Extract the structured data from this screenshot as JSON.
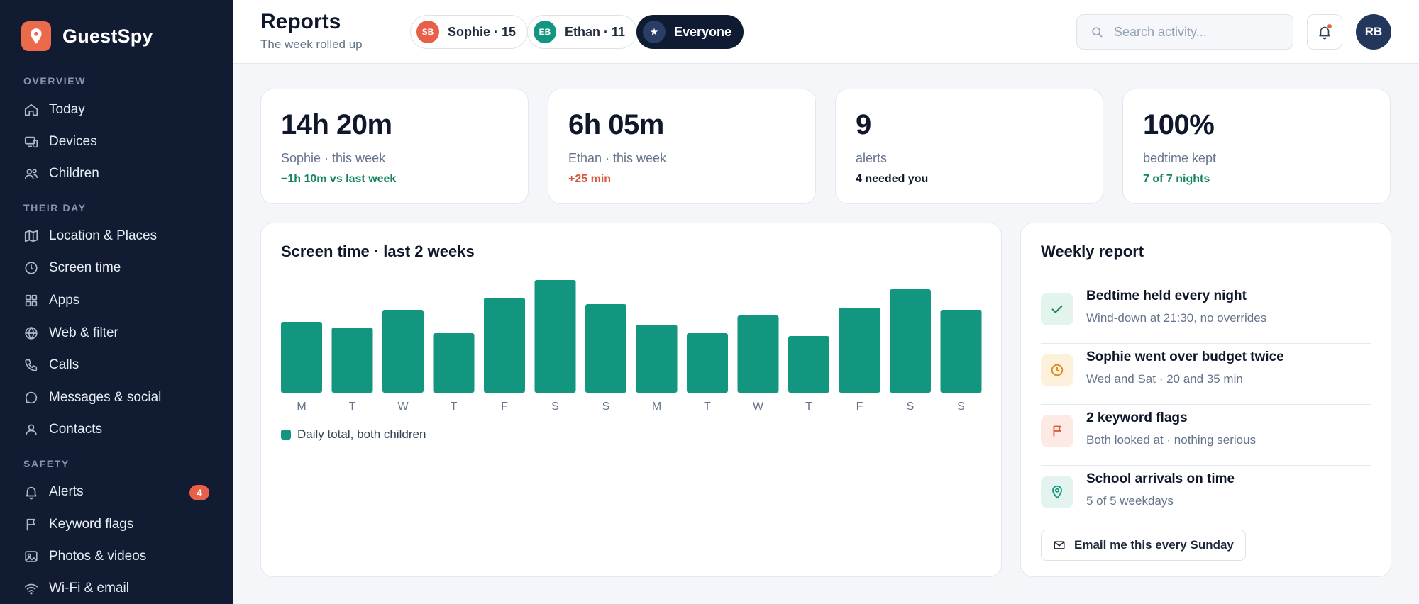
{
  "app": {
    "name": "GuestSpy"
  },
  "sidebar": {
    "sections": [
      {
        "title": "OVERVIEW",
        "items": [
          {
            "label": "Today",
            "icon": "home-icon"
          },
          {
            "label": "Devices",
            "icon": "devices-icon"
          },
          {
            "label": "Children",
            "icon": "users-icon"
          }
        ]
      },
      {
        "title": "THEIR DAY",
        "items": [
          {
            "label": "Location & Places",
            "icon": "map-icon"
          },
          {
            "label": "Screen time",
            "icon": "clock-icon"
          },
          {
            "label": "Apps",
            "icon": "grid-icon"
          },
          {
            "label": "Web & filter",
            "icon": "globe-icon"
          },
          {
            "label": "Calls",
            "icon": "phone-icon"
          },
          {
            "label": "Messages & social",
            "icon": "chat-icon"
          },
          {
            "label": "Contacts",
            "icon": "user-icon"
          }
        ]
      },
      {
        "title": "SAFETY",
        "items": [
          {
            "label": "Alerts",
            "icon": "bell-icon",
            "badge": "4"
          },
          {
            "label": "Keyword flags",
            "icon": "flag-icon"
          },
          {
            "label": "Photos & videos",
            "icon": "image-icon"
          },
          {
            "label": "Wi-Fi & email",
            "icon": "wifi-icon"
          }
        ]
      }
    ]
  },
  "header": {
    "title": "Reports",
    "subtitle": "The week rolled up",
    "filters": [
      {
        "initials": "SB",
        "label": "Sophie · 15",
        "color": "#e8604a",
        "active": false
      },
      {
        "initials": "EB",
        "label": "Ethan · 11",
        "color": "#13967f",
        "active": false
      },
      {
        "initials": "★",
        "label": "Everyone",
        "color": "#2a3d66",
        "active": true
      }
    ],
    "search": {
      "placeholder": "Search activity...",
      "value": ""
    },
    "user_initials": "RB"
  },
  "stats": [
    {
      "value": "14h 20m",
      "label": "Sophie · this week",
      "delta": "−1h 10m vs last week",
      "delta_color": "#15845f"
    },
    {
      "value": "6h 05m",
      "label": "Ethan · this week",
      "delta": "+25 min",
      "delta_color": "#d9573c"
    },
    {
      "value": "9",
      "label": "alerts",
      "delta": "4 needed you",
      "delta_color": "#0f172a"
    },
    {
      "value": "100%",
      "label": "bedtime kept",
      "delta": "7 of 7 nights",
      "delta_color": "#15845f"
    }
  ],
  "chart_card": {
    "title": "Screen time · last 2 weeks",
    "legend": "Daily total, both children"
  },
  "chart_data": {
    "type": "bar",
    "categories": [
      "M",
      "T",
      "W",
      "T",
      "F",
      "S",
      "S",
      "M",
      "T",
      "W",
      "T",
      "F",
      "S",
      "S"
    ],
    "series": [
      {
        "name": "Daily total, both children",
        "values": [
          100,
          92,
          117,
          84,
          134,
          159,
          125,
          96,
          84,
          109,
          80,
          120,
          146,
          117
        ],
        "color": "#13967f"
      }
    ],
    "ylim": [
      0,
      160
    ],
    "grid": false,
    "legend_position": "bottom-left"
  },
  "report": {
    "title": "Weekly report",
    "items": [
      {
        "title": "Bedtime held every night",
        "subtitle": "Wind-down at 21:30, no overrides",
        "icon": "check-icon",
        "bg": "#e3f4ec",
        "fg": "#15845f"
      },
      {
        "title": "Sophie went over budget twice",
        "subtitle": "Wed and Sat · 20 and 35 min",
        "icon": "clock-icon",
        "bg": "#fdf1dc",
        "fg": "#d98a1c"
      },
      {
        "title": "2 keyword flags",
        "subtitle": "Both looked at · nothing serious",
        "icon": "flag-icon",
        "bg": "#fdeae5",
        "fg": "#d9573c"
      },
      {
        "title": "School arrivals on time",
        "subtitle": "5 of 5 weekdays",
        "icon": "pin-icon",
        "bg": "#e2f3f0",
        "fg": "#13967f"
      }
    ],
    "email_button": "Email me this every Sunday"
  }
}
